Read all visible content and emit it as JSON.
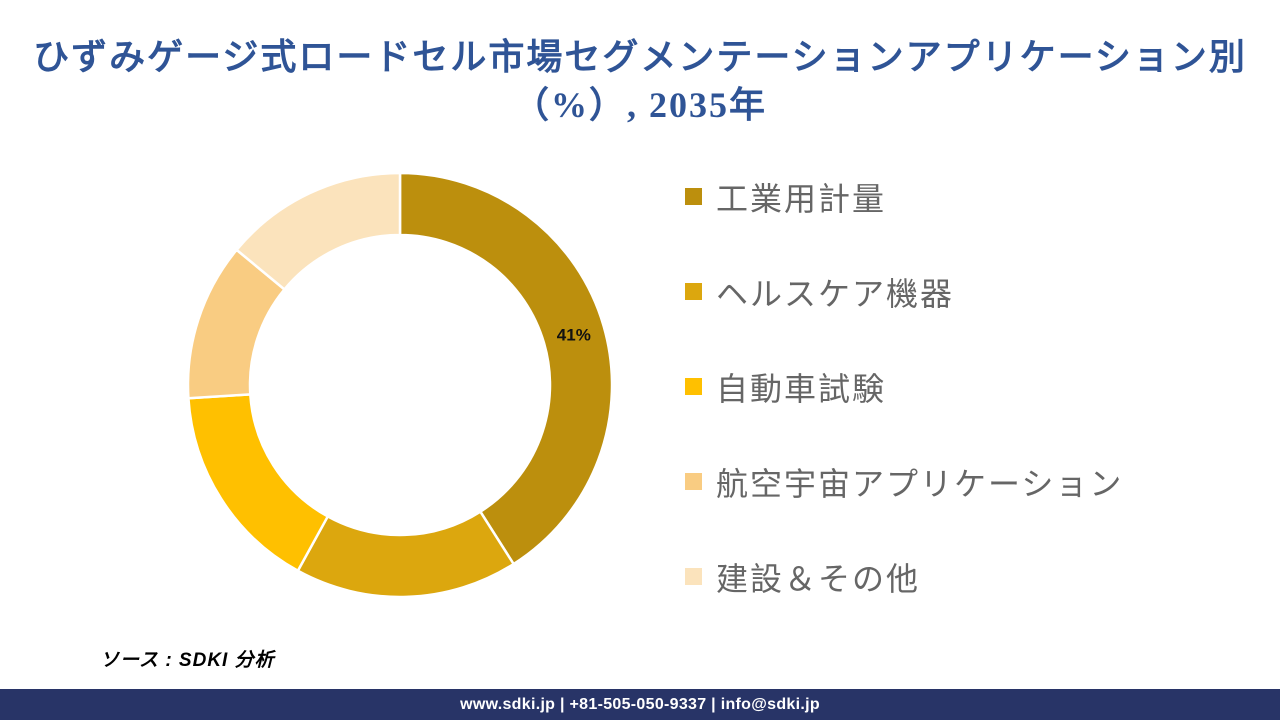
{
  "title": {
    "line1": "ひずみゲージ式ロードセル市場セグメンテーションアプリケーション別",
    "line2": "（%）, 2035年"
  },
  "chart_data": {
    "type": "pie",
    "subtype": "donut",
    "unit": "%",
    "start_angle_deg": 0,
    "legend_position": "right",
    "shown_data_labels": [
      "41%"
    ],
    "categories": [
      "工業用計量",
      "ヘルスケア機器",
      "自動車試験",
      "航空宇宙アプリケーション",
      "建設＆その他"
    ],
    "segments": [
      {
        "label": "工業用計量",
        "value": 41,
        "color": "#BC8F0D",
        "data_label": "41%"
      },
      {
        "label": "ヘルスケア機器",
        "value": 17,
        "color": "#DCA70E",
        "data_label": ""
      },
      {
        "label": "自動車試験",
        "value": 16,
        "color": "#FFC000",
        "data_label": ""
      },
      {
        "label": "航空宇宙アプリケーション",
        "value": 12,
        "color": "#F9CC82",
        "data_label": ""
      },
      {
        "label": "建設＆その他",
        "value": 14,
        "color": "#FBE3BC",
        "data_label": ""
      }
    ]
  },
  "source": {
    "text": "ソース : SDKI  分析"
  },
  "footer": {
    "text": "www.sdki.jp | +81-505-050-9337 | info@sdki.jp",
    "bg_color": "#283467"
  }
}
